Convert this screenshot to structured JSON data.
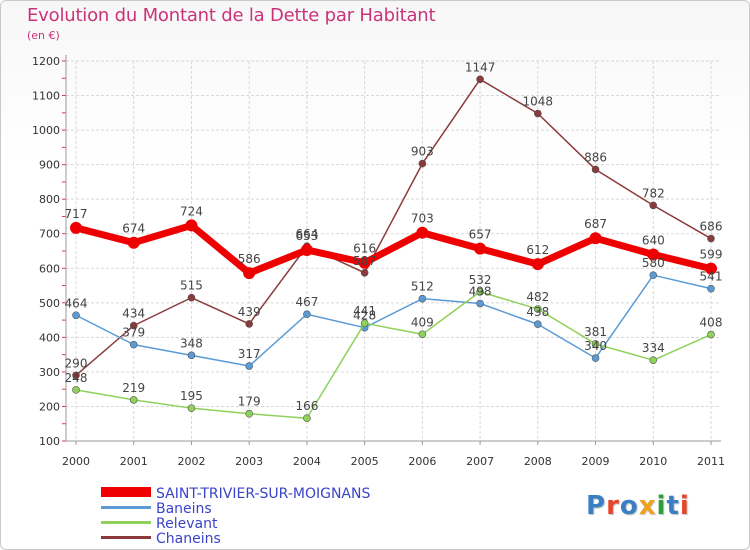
{
  "title": "Evolution du Montant de la Dette par Habitant",
  "subtitle": "(en €)",
  "logo": {
    "text": "Proxiti",
    "colors": [
      "#3a7fc4",
      "#e8452c",
      "#3a7fc4",
      "#f0a020",
      "#2e9e3a",
      "#3a7fc4",
      "#e8452c"
    ]
  },
  "chart_data": {
    "type": "line",
    "title": "Evolution du Montant de la Dette par Habitant",
    "ylabel": "(en €)",
    "ylim": [
      100,
      1200
    ],
    "yticks": [
      100,
      200,
      300,
      400,
      500,
      600,
      700,
      800,
      900,
      1000,
      1100,
      1200
    ],
    "x": [
      "2000",
      "2001",
      "2002",
      "2003",
      "2004",
      "2005",
      "2006",
      "2007",
      "2008",
      "2009",
      "2010",
      "2011"
    ],
    "grid": true,
    "legend_position": "bottom-left",
    "series": [
      {
        "name": "SAINT-TRIVIER-SUR-MOIGNANS",
        "color": "#ee0000",
        "values": [
          717,
          674,
          724,
          586,
          653,
          616,
          703,
          657,
          612,
          687,
          640,
          599
        ]
      },
      {
        "name": "Baneins",
        "color": "#5b9bd5",
        "values": [
          464,
          379,
          348,
          317,
          467,
          428,
          512,
          498,
          438,
          340,
          580,
          541
        ]
      },
      {
        "name": "Relevant",
        "color": "#8fd15a",
        "values": [
          248,
          219,
          195,
          179,
          166,
          441,
          409,
          532,
          482,
          381,
          334,
          408
        ]
      },
      {
        "name": "Chaneins",
        "color": "#8b3a3a",
        "values": [
          290,
          434,
          515,
          439,
          664,
          587,
          903,
          1147,
          1048,
          886,
          782,
          686
        ]
      }
    ]
  }
}
